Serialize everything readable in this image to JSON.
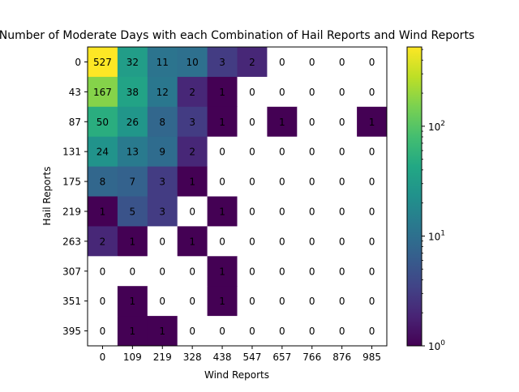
{
  "chart_data": {
    "type": "heatmap",
    "title": "Number of Moderate Days with each Combination of Hail Reports and Wind Reports",
    "xlabel": "Wind Reports",
    "ylabel": "Hail Reports",
    "x_categories": [
      "0",
      "109",
      "219",
      "328",
      "438",
      "547",
      "657",
      "766",
      "876",
      "985"
    ],
    "y_categories": [
      "0",
      "43",
      "87",
      "131",
      "175",
      "219",
      "263",
      "307",
      "351",
      "395"
    ],
    "values": [
      [
        527,
        32,
        11,
        10,
        3,
        2,
        0,
        0,
        0,
        0
      ],
      [
        167,
        38,
        12,
        2,
        1,
        0,
        0,
        0,
        0,
        0
      ],
      [
        50,
        26,
        8,
        3,
        1,
        0,
        1,
        0,
        0,
        1
      ],
      [
        24,
        13,
        9,
        2,
        0,
        0,
        0,
        0,
        0,
        0
      ],
      [
        8,
        7,
        3,
        1,
        0,
        0,
        0,
        0,
        0,
        0
      ],
      [
        1,
        5,
        3,
        0,
        1,
        0,
        0,
        0,
        0,
        0
      ],
      [
        2,
        1,
        0,
        1,
        0,
        0,
        0,
        0,
        0,
        0
      ],
      [
        0,
        0,
        0,
        0,
        1,
        0,
        0,
        0,
        0,
        0
      ],
      [
        0,
        1,
        0,
        0,
        1,
        0,
        0,
        0,
        0,
        0
      ],
      [
        0,
        1,
        1,
        0,
        0,
        0,
        0,
        0,
        0,
        0
      ]
    ],
    "colorbar": {
      "scale": "log",
      "min": 1,
      "max": 527,
      "colormap": "viridis",
      "tick_labels": [
        "10^0",
        "10^1",
        "10^2"
      ]
    },
    "zero_color": "#ffffff",
    "grid": false
  }
}
